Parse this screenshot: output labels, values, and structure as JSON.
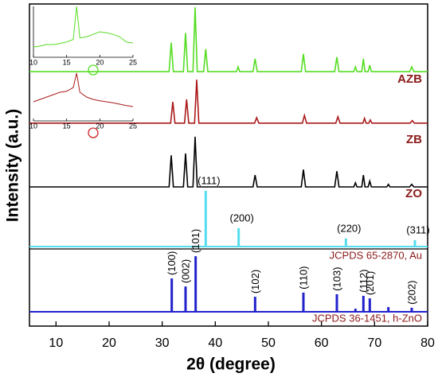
{
  "chart_data": {
    "type": "line",
    "xlabel": "2θ (degree)",
    "ylabel": "Intensity (a.u.)",
    "xlim": [
      5,
      80
    ],
    "xticks": [
      10,
      20,
      30,
      40,
      50,
      60,
      70,
      80
    ],
    "ylim": [
      0,
      100
    ],
    "series": [
      {
        "name": "AZB",
        "color": "#55dd22",
        "style": "line",
        "x": [
          5,
          31.3,
          31.7,
          32.1,
          34.0,
          34.4,
          34.8,
          35.8,
          36.2,
          36.6,
          37.8,
          38.2,
          38.6,
          44.0,
          44.3,
          44.6,
          47.1,
          47.5,
          47.9,
          56.2,
          56.6,
          57.0,
          62.5,
          62.9,
          63.3,
          66.1,
          66.4,
          66.7,
          67.6,
          67.9,
          68.2,
          68.8,
          69.1,
          69.4,
          76.6,
          77.0,
          77.4,
          80
        ],
        "values": [
          79,
          79,
          88,
          79,
          79,
          91,
          79,
          79,
          99,
          79,
          79,
          86,
          79,
          79,
          80.5,
          79,
          79,
          83,
          79,
          79,
          84.5,
          79,
          79,
          83.5,
          79,
          79,
          80.5,
          79,
          79,
          83,
          79,
          79,
          81,
          79,
          79,
          80.5,
          79,
          79
        ]
      },
      {
        "name": "ZB",
        "color": "#aa1a1a",
        "style": "line",
        "x": [
          5,
          31.6,
          32.0,
          32.4,
          34.2,
          34.6,
          35.0,
          36.1,
          36.5,
          36.9,
          47.4,
          47.8,
          48.2,
          56.4,
          56.8,
          57.2,
          62.7,
          63.1,
          63.5,
          67.8,
          68.1,
          68.4,
          68.9,
          69.2,
          69.5,
          76.7,
          77.1,
          77.5,
          80
        ],
        "values": [
          63,
          63,
          69.6,
          63,
          63,
          70.4,
          63,
          63,
          76.5,
          63,
          63,
          64.7,
          63,
          63,
          65.4,
          63,
          63,
          65,
          63,
          63,
          64.5,
          63,
          63,
          64,
          63,
          63,
          63.8,
          63,
          63
        ]
      },
      {
        "name": "ZO",
        "color": "#000000",
        "style": "line",
        "x": [
          5,
          31.3,
          31.7,
          32.1,
          34.0,
          34.4,
          34.8,
          35.8,
          36.2,
          36.6,
          47.1,
          47.5,
          47.9,
          56.2,
          56.6,
          57.0,
          62.5,
          62.9,
          63.3,
          66.1,
          66.4,
          66.7,
          67.6,
          67.9,
          68.2,
          68.8,
          69.1,
          69.4,
          72.3,
          72.6,
          72.9,
          76.6,
          77.0,
          77.4,
          80
        ],
        "values": [
          43.2,
          43.2,
          53,
          43.2,
          43.2,
          53.6,
          43.2,
          43.2,
          58.8,
          43.2,
          43.2,
          46.9,
          43.2,
          43.2,
          48.6,
          43.2,
          43.2,
          48.1,
          43.2,
          43.2,
          44.5,
          43.2,
          43.2,
          46.9,
          43.2,
          43.2,
          45,
          43.2,
          43.2,
          44,
          43.2,
          43.2,
          44,
          43.2,
          43.2
        ]
      },
      {
        "name": "JCPDS 65-2870, Au",
        "color": "#55ddee",
        "style": "stick",
        "x": [
          38.2,
          44.4,
          64.6,
          77.6
        ],
        "values": [
          42,
          30.4,
          27.2,
          26.7
        ],
        "labels": [
          "(111)",
          "(200)",
          "(220)",
          "(311)"
        ]
      },
      {
        "name": "JCPDS 36-1451, h-ZnO",
        "color": "#2222cc",
        "style": "stick",
        "x": [
          31.8,
          34.4,
          36.3,
          47.5,
          56.6,
          62.9,
          66.4,
          67.9,
          69.1,
          72.6,
          77.0
        ],
        "values": [
          14.8,
          12.3,
          21.7,
          9.1,
          10.4,
          9.9,
          5.4,
          9.4,
          8.6,
          5.9,
          5.7
        ],
        "labels": [
          "(100)",
          "(002)",
          "(101)",
          "(102)",
          "(110)",
          "(103)",
          null,
          "(112)",
          "(201)",
          null,
          "(202)"
        ]
      }
    ],
    "insets": [
      {
        "color": "#55dd22",
        "xlim": [
          10,
          25
        ],
        "xticks": [
          10,
          15,
          20,
          25
        ],
        "ylim": [
          0,
          100
        ],
        "x": [
          10,
          11,
          12,
          13,
          14,
          15,
          16,
          16.5,
          17,
          18,
          19,
          20,
          21,
          22,
          23,
          24,
          25
        ],
        "values": [
          20,
          22,
          25,
          25,
          27,
          30,
          35,
          100,
          38,
          40,
          45,
          50,
          48,
          45,
          40,
          30,
          28
        ]
      },
      {
        "color": "#aa1a1a",
        "xlim": [
          10,
          25
        ],
        "xticks": [
          10,
          15,
          20,
          25
        ],
        "ylim": [
          0,
          100
        ],
        "x": [
          10,
          11,
          12,
          13,
          14,
          15,
          16,
          16.5,
          17,
          18,
          19,
          20,
          21,
          22,
          23,
          24,
          25
        ],
        "values": [
          40,
          45,
          50,
          55,
          60,
          62,
          70,
          100,
          60,
          50,
          45,
          42,
          40,
          38,
          35,
          32,
          30
        ]
      }
    ]
  }
}
